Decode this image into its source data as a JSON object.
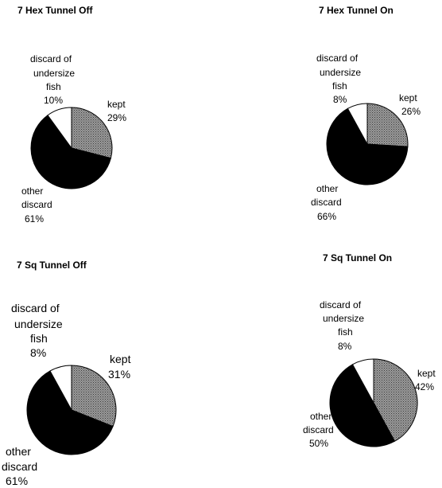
{
  "colors": {
    "kept": "#8a8a8a",
    "other_discard": "#000000",
    "undersize_discard": "#ffffff",
    "outline": "#000000"
  },
  "chart_data": [
    {
      "type": "pie",
      "title": "7 Hex Tunnel Off",
      "slices": [
        {
          "name": "kept",
          "value": 29,
          "label_lines": [
            "kept",
            "29%"
          ]
        },
        {
          "name": "other discard",
          "value": 61,
          "label_lines": [
            "other",
            "discard",
            "61%"
          ]
        },
        {
          "name": "discard of undersize fish",
          "value": 10,
          "label_lines": [
            "discard of",
            "undersize",
            "fish",
            "10%"
          ]
        }
      ]
    },
    {
      "type": "pie",
      "title": "7 Hex Tunnel On",
      "slices": [
        {
          "name": "kept",
          "value": 26,
          "label_lines": [
            "kept",
            "26%"
          ]
        },
        {
          "name": "other discard",
          "value": 66,
          "label_lines": [
            "other",
            "discard",
            "66%"
          ]
        },
        {
          "name": "discard of undersize fish",
          "value": 8,
          "label_lines": [
            "discard of",
            "undersize",
            "fish",
            "8%"
          ]
        }
      ]
    },
    {
      "type": "pie",
      "title": "7 Sq Tunnel Off",
      "slices": [
        {
          "name": "kept",
          "value": 31,
          "label_lines": [
            "kept",
            "31%"
          ]
        },
        {
          "name": "other discard",
          "value": 61,
          "label_lines": [
            "other",
            "discard",
            "61%"
          ]
        },
        {
          "name": "discard of undersize fish",
          "value": 8,
          "label_lines": [
            "discard of",
            "undersize",
            "fish",
            "8%"
          ]
        }
      ]
    },
    {
      "type": "pie",
      "title": "7 Sq Tunnel On",
      "slices": [
        {
          "name": "kept",
          "value": 42,
          "label_lines": [
            "kept",
            "42%"
          ]
        },
        {
          "name": "other discard",
          "value": 50,
          "label_lines": [
            "other",
            "discard",
            "50%"
          ]
        },
        {
          "name": "discard of undersize fish",
          "value": 8,
          "label_lines": [
            "discard of",
            "undersize",
            "fish",
            "8%"
          ]
        }
      ]
    }
  ]
}
